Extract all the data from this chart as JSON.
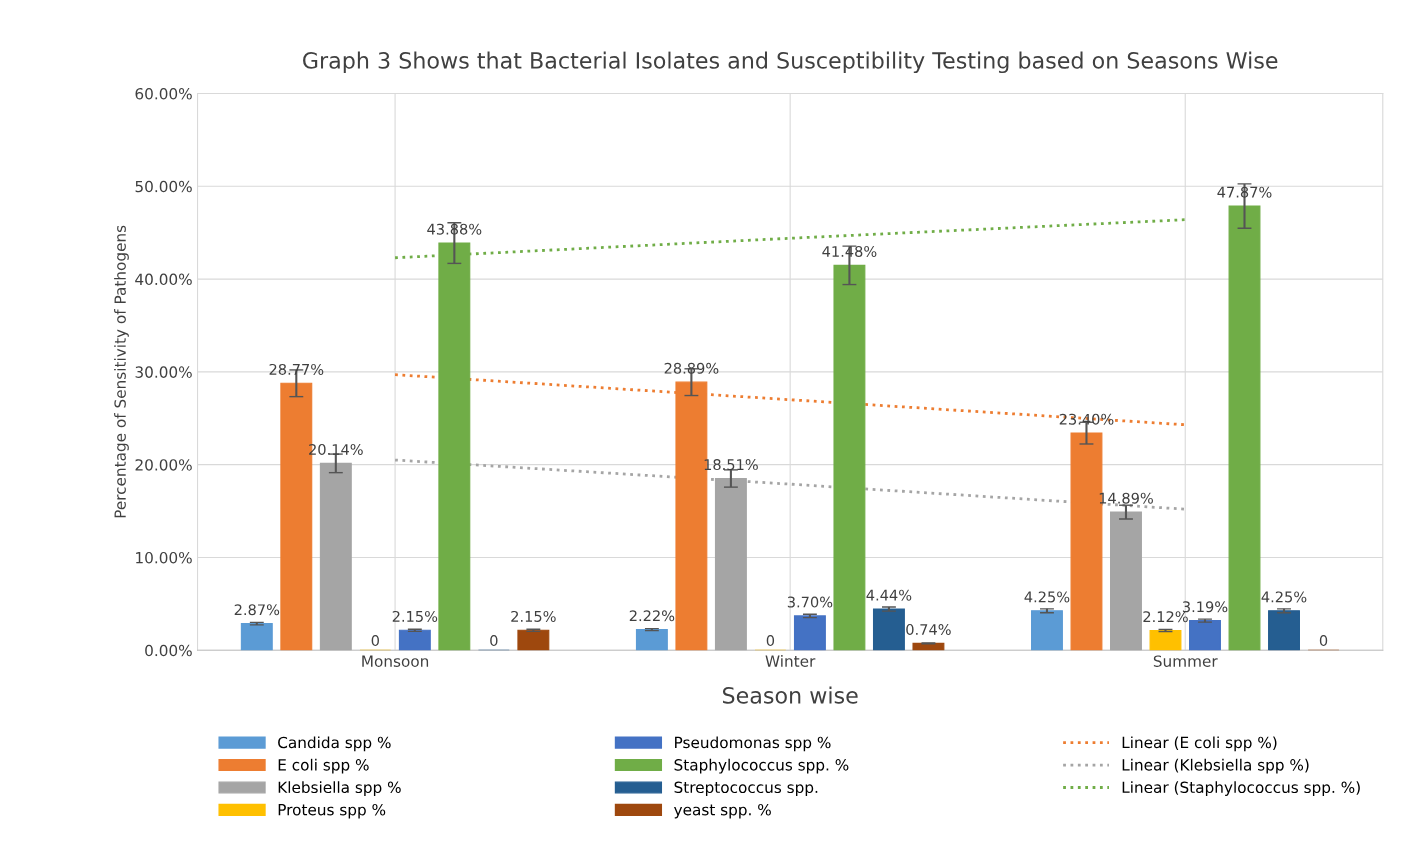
{
  "chart_data": {
    "type": "bar",
    "title": "Graph 3 Shows that Bacterial Isolates and Susceptibility Testing based on Seasons Wise",
    "xlabel": "Season wise",
    "ylabel": "Percentage of Sensitivity of Pathogens",
    "categories": [
      "Monsoon",
      "Winter",
      "Summer"
    ],
    "ylim": [
      0,
      60
    ],
    "yticks": [
      {
        "value": 0,
        "label": "0.00%"
      },
      {
        "value": 10,
        "label": "10.00%"
      },
      {
        "value": 20,
        "label": "20.00%"
      },
      {
        "value": 30,
        "label": "30.00%"
      },
      {
        "value": 40,
        "label": "40.00%"
      },
      {
        "value": 50,
        "label": "50.00%"
      },
      {
        "value": 60,
        "label": "60.00%"
      }
    ],
    "grid": true,
    "legend": "bottom",
    "series": [
      {
        "name": "Candida spp %",
        "color": "#5b9bd5",
        "values": [
          2.87,
          2.22,
          4.25
        ],
        "errors": [
          0.14,
          0.11,
          0.21
        ],
        "value_labels": [
          "2.87%",
          "2.22%",
          "4.25%"
        ]
      },
      {
        "name": "E coli spp %",
        "color": "#ed7d31",
        "values": [
          28.77,
          28.89,
          23.4
        ],
        "errors": [
          1.44,
          1.44,
          1.17
        ],
        "value_labels": [
          "28.77%",
          "28.89%",
          "23.40%"
        ]
      },
      {
        "name": "Klebsiella spp %",
        "color": "#a5a5a5",
        "values": [
          20.14,
          18.51,
          14.89
        ],
        "errors": [
          1.0,
          0.93,
          0.74
        ],
        "value_labels": [
          "20.14%",
          "18.51%",
          "14.89%"
        ]
      },
      {
        "name": "Proteus spp %",
        "color": "#ffc000",
        "values": [
          0,
          0,
          2.12
        ],
        "errors": [
          null,
          null,
          0.11
        ],
        "value_labels": [
          "0",
          "0",
          "2.12%"
        ]
      },
      {
        "name": "Pseudomonas spp %",
        "color": "#4472c4",
        "values": [
          2.15,
          3.7,
          3.19
        ],
        "errors": [
          0.11,
          0.18,
          0.16
        ],
        "value_labels": [
          "2.15%",
          "3.70%",
          "3.19%"
        ]
      },
      {
        "name": "Staphylococcus spp. %",
        "color": "#70ad47",
        "values": [
          43.88,
          41.48,
          47.87
        ],
        "errors": [
          2.19,
          2.07,
          2.39
        ],
        "value_labels": [
          "43.88%",
          "41.48%",
          "47.87%"
        ]
      },
      {
        "name": "Streptococcus spp.",
        "color": "#255e91",
        "values": [
          0,
          4.44,
          4.25
        ],
        "errors": [
          null,
          0.22,
          0.21
        ],
        "value_labels": [
          "0",
          "4.44%",
          "4.25%"
        ]
      },
      {
        "name": "yeast spp. %",
        "color": "#9e480e",
        "values": [
          2.15,
          0.74,
          0
        ],
        "errors": [
          0.11,
          0.04,
          null
        ],
        "value_labels": [
          "2.15%",
          "0.74%",
          "0"
        ]
      },
      {
        "name": "Linear (E coli spp %)",
        "type": "line",
        "line_style": "dotted",
        "color": "#ed7d31",
        "values": [
          29.7,
          27.0,
          24.3
        ]
      },
      {
        "name": "Linear (Klebsiella spp %)",
        "type": "line",
        "line_style": "dotted",
        "color": "#a5a5a5",
        "values": [
          20.5,
          17.9,
          15.2
        ]
      },
      {
        "name": "Linear (Staphylococcus spp. %)",
        "type": "line",
        "line_style": "dotted",
        "color": "#70ad47",
        "values": [
          42.3,
          44.4,
          46.4
        ]
      }
    ]
  }
}
